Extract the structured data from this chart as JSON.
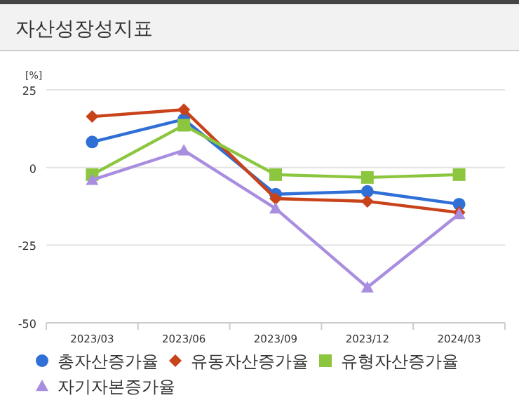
{
  "chart_data": {
    "type": "line",
    "title": "자산성장성지표",
    "ylabel": "[%]",
    "categories": [
      "2023/03",
      "2023/06",
      "2023/09",
      "2023/12",
      "2024/03"
    ],
    "series": [
      {
        "name": "총자산증가율",
        "color": "#2f6fd6",
        "marker": "circle",
        "values": [
          8.2,
          15.5,
          -8.6,
          -7.7,
          -11.8
        ]
      },
      {
        "name": "유동자산증가율",
        "color": "#c8421a",
        "marker": "diamond",
        "values": [
          16.4,
          18.6,
          -10,
          -10.9,
          -14.5
        ]
      },
      {
        "name": "유형자산증가율",
        "color": "#8cc63f",
        "marker": "square",
        "values": [
          -2.3,
          13.6,
          -2.3,
          -3.2,
          -2.3
        ]
      },
      {
        "name": "자기자본증가율",
        "color": "#a98ee0",
        "marker": "triangle",
        "values": [
          -4,
          5.5,
          -13.2,
          -38.6,
          -15
        ]
      }
    ],
    "ylim": [
      -50,
      25
    ],
    "yticks": [
      -50,
      -25,
      0,
      25
    ],
    "grid": "y",
    "legend": "bottom",
    "line_style": "solid"
  }
}
